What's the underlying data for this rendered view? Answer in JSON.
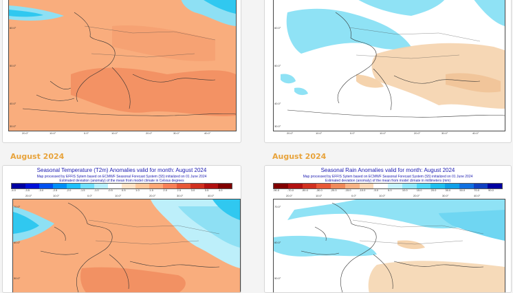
{
  "headings": {
    "left": "August 2024",
    "right": "August 2024"
  },
  "temperature_map": {
    "title": "Seasonal Temperature (T2m) Anomalies valid for month: August 2024",
    "line1": "Map processed by EFFIS Sytem based on ECMWF Seasonal Forecast System (S5) initialized on 01 June 2024",
    "line2": "Estimated deviation (anomaly) of the mean from model climate in Celsius degrees",
    "scale_labels": [
      "-4.0",
      "-3.5",
      "-3.0",
      "-2.5",
      "-2.0",
      "-1.5",
      "-1.0",
      "-0.5",
      "0.5",
      "1.0",
      "1.5",
      "2.0",
      "2.5",
      "3.0",
      "3.5",
      "4.0"
    ],
    "scale_colors": [
      "#0000a0",
      "#0010d8",
      "#0050f0",
      "#0090f8",
      "#20c0ff",
      "#70e0ff",
      "#b8f0ff",
      "#ffffff",
      "#ffe4c8",
      "#ffc89c",
      "#ffa878",
      "#f88058",
      "#e85838",
      "#d03020",
      "#b01010",
      "#800000"
    ],
    "colors": {
      "warm": "#f9ad7d",
      "warm_strong": "#f08a5c",
      "cool": "#8ee0f4",
      "cold": "#30c8f0"
    }
  },
  "rain_map": {
    "title": "Seasonal Rain Anomalies valid for month: August 2024",
    "line1": "Map processed by EFFIS Sytem based on ECMWF Seasonal Forecast System (S5) initialized on 01 June 2024",
    "line2": "Estimated deviation (anomaly) of the mean from model climate in millimeters (mm)",
    "scale_labels": [
      "-90.0",
      "-70.0",
      "-50.0",
      "-30.0",
      "-20.0",
      "-15.0",
      "-10.0",
      "-5.0",
      "5.0",
      "10.0",
      "15.0",
      "20.0",
      "30.0",
      "50.0",
      "70.0",
      "90.0"
    ],
    "scale_colors": [
      "#800000",
      "#b01010",
      "#d03020",
      "#e85838",
      "#f08a5c",
      "#f8b488",
      "#fcd8b8",
      "#ffffff",
      "#c8f4ff",
      "#90e8fc",
      "#50d8f8",
      "#20c0f0",
      "#10a0e8",
      "#1070e0",
      "#1040c0",
      "#0000a0"
    ],
    "colors": {
      "dry": "#f5d3ad",
      "wet": "#8fe2f5"
    }
  },
  "lon_ticks": [
    "20.0°",
    "10.0°",
    "0.0°",
    "10.0°",
    "20.0°",
    "30.0°",
    "40.0°",
    "50.0°"
  ],
  "lat_ticks_top": [
    "70.0°",
    "60.0°",
    "50.0°",
    "40.0°",
    "30.0°"
  ],
  "lat_ticks_bottom": [
    "70.0°",
    "60.0°",
    "50.0°"
  ]
}
